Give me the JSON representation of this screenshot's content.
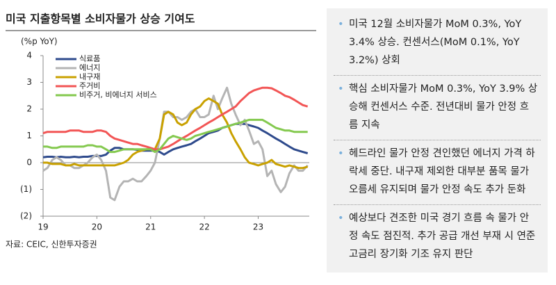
{
  "chart_data": {
    "type": "line",
    "title": "미국 지출항목별 소비자물가 상승 기여도",
    "y_label": "(%p YoY)",
    "source": "자료: CEIC, 신한투자증권",
    "x": [
      19,
      19.08,
      19.17,
      19.25,
      19.33,
      19.42,
      19.5,
      19.58,
      19.67,
      19.75,
      19.83,
      19.92,
      20,
      20.08,
      20.17,
      20.25,
      20.33,
      20.42,
      20.5,
      20.58,
      20.67,
      20.75,
      20.83,
      20.92,
      21,
      21.08,
      21.17,
      21.25,
      21.33,
      21.42,
      21.5,
      21.58,
      21.67,
      21.75,
      21.83,
      21.92,
      22,
      22.08,
      22.17,
      22.25,
      22.33,
      22.42,
      22.5,
      22.58,
      22.67,
      22.75,
      22.83,
      22.92,
      23,
      23.08,
      23.17,
      23.25,
      23.33,
      23.42,
      23.5,
      23.58,
      23.67,
      23.75,
      23.83,
      23.92
    ],
    "xlim": [
      19,
      23.95
    ],
    "xticks": [
      19,
      20,
      21,
      22,
      23
    ],
    "ylim": [
      -2,
      4
    ],
    "yticks": [
      4,
      3,
      2,
      1,
      0,
      {
        "value": -1,
        "label": "(1)"
      },
      {
        "value": -2,
        "label": "(2)"
      }
    ],
    "series": [
      {
        "name": "식료품",
        "color": "#2e4a8c",
        "values": [
          0.2,
          0.22,
          0.22,
          0.2,
          0.22,
          0.2,
          0.2,
          0.22,
          0.2,
          0.22,
          0.22,
          0.25,
          0.25,
          0.25,
          0.3,
          0.45,
          0.55,
          0.55,
          0.5,
          0.5,
          0.5,
          0.48,
          0.45,
          0.45,
          0.45,
          0.45,
          0.4,
          0.3,
          0.4,
          0.5,
          0.55,
          0.6,
          0.65,
          0.7,
          0.8,
          0.9,
          1.0,
          1.1,
          1.15,
          1.2,
          1.3,
          1.35,
          1.4,
          1.45,
          1.45,
          1.45,
          1.4,
          1.35,
          1.3,
          1.2,
          1.1,
          1.0,
          0.9,
          0.8,
          0.7,
          0.6,
          0.5,
          0.45,
          0.4,
          0.35
        ]
      },
      {
        "name": "에너지",
        "color": "#b4b4b4",
        "values": [
          -0.3,
          -0.2,
          0.1,
          0.2,
          0.1,
          -0.1,
          -0.1,
          -0.2,
          -0.2,
          -0.1,
          0.0,
          0.2,
          0.3,
          0.1,
          -0.3,
          -1.3,
          -1.4,
          -0.9,
          -0.7,
          -0.7,
          -0.6,
          -0.7,
          -0.7,
          -0.5,
          -0.3,
          0.0,
          0.9,
          1.9,
          1.9,
          1.7,
          1.7,
          1.6,
          1.7,
          1.9,
          2.0,
          1.7,
          1.7,
          1.8,
          2.5,
          2.0,
          2.4,
          2.8,
          2.2,
          1.8,
          1.4,
          1.6,
          1.2,
          0.7,
          0.8,
          0.5,
          -0.5,
          -0.3,
          -0.8,
          -1.1,
          -0.9,
          -0.4,
          -0.1,
          -0.3,
          -0.3,
          -0.1
        ]
      },
      {
        "name": "내구재",
        "color": "#c9a100",
        "values": [
          0,
          0,
          -0.05,
          -0.05,
          -0.05,
          -0.1,
          -0.1,
          -0.05,
          -0.1,
          -0.1,
          -0.1,
          -0.1,
          -0.1,
          -0.1,
          -0.1,
          -0.1,
          -0.1,
          -0.05,
          0.0,
          0.1,
          0.3,
          0.4,
          0.45,
          0.5,
          0.5,
          0.5,
          0.9,
          1.8,
          1.9,
          1.8,
          1.5,
          1.4,
          1.5,
          1.8,
          2.0,
          2.1,
          2.3,
          2.4,
          2.3,
          2.2,
          1.8,
          1.5,
          1.1,
          0.8,
          0.5,
          0.2,
          0.0,
          -0.05,
          -0.1,
          -0.05,
          0.0,
          0.1,
          -0.05,
          -0.1,
          -0.15,
          -0.1,
          -0.15,
          -0.2,
          -0.2,
          -0.15
        ]
      },
      {
        "name": "주거비",
        "color": "#f25555",
        "values": [
          1.1,
          1.15,
          1.15,
          1.15,
          1.15,
          1.15,
          1.2,
          1.2,
          1.2,
          1.15,
          1.15,
          1.15,
          1.2,
          1.2,
          1.15,
          1.0,
          0.9,
          0.85,
          0.8,
          0.75,
          0.7,
          0.7,
          0.65,
          0.6,
          0.55,
          0.5,
          0.5,
          0.55,
          0.6,
          0.7,
          0.8,
          0.9,
          1.0,
          1.1,
          1.2,
          1.3,
          1.4,
          1.5,
          1.6,
          1.7,
          1.8,
          1.9,
          2.0,
          2.1,
          2.3,
          2.45,
          2.6,
          2.7,
          2.75,
          2.8,
          2.8,
          2.78,
          2.7,
          2.6,
          2.5,
          2.45,
          2.35,
          2.25,
          2.15,
          2.1
        ]
      },
      {
        "name": "비주거, 비에너지 서비스",
        "color": "#84c94f",
        "values": [
          0.6,
          0.6,
          0.55,
          0.55,
          0.6,
          0.6,
          0.6,
          0.6,
          0.6,
          0.6,
          0.65,
          0.65,
          0.6,
          0.6,
          0.5,
          0.4,
          0.4,
          0.45,
          0.5,
          0.5,
          0.5,
          0.5,
          0.5,
          0.5,
          0.5,
          0.4,
          0.5,
          0.7,
          0.9,
          1.0,
          0.95,
          0.9,
          0.85,
          0.9,
          1.0,
          1.05,
          1.1,
          1.15,
          1.2,
          1.25,
          1.3,
          1.35,
          1.4,
          1.45,
          1.5,
          1.55,
          1.6,
          1.6,
          1.6,
          1.6,
          1.5,
          1.4,
          1.3,
          1.25,
          1.2,
          1.2,
          1.15,
          1.15,
          1.15,
          1.15
        ]
      }
    ],
    "legend": "upper-left"
  },
  "notes": [
    "미국 12월 소비자물가 MoM 0.3%, YoY 3.4% 상승. 컨센서스(MoM 0.1%, YoY 3.2%) 상회",
    "핵심 소비자물가 MoM 0.3%, YoY 3.9% 상승해 컨센서스 수준. 전년대비 물가 안정 흐름 지속",
    "헤드라인 물가 안정 견인했던 에너지 가격 하락세 중단. 내구재 제외한 대부분 품목 물가 오름세 유지되며 물가 안정 속도 추가 둔화",
    "예상보다 견조한 미국 경기 흐름 속 물가 안정 속도 점진적. 추가 공급 개선 부재 시 연준 고금리 장기화 기조 유지 판단"
  ]
}
